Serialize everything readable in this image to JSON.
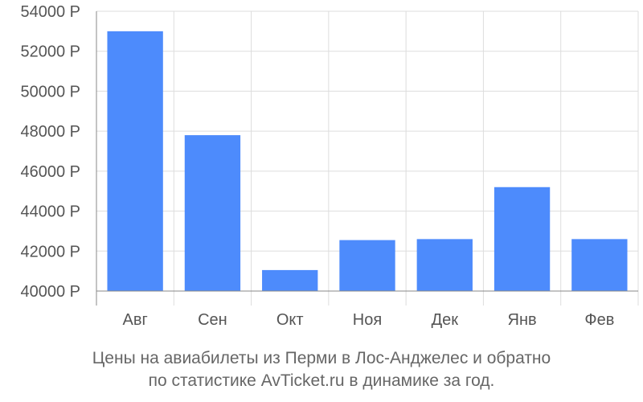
{
  "chart_data": {
    "type": "bar",
    "categories": [
      "Авг",
      "Сен",
      "Окт",
      "Ноя",
      "Дек",
      "Янв",
      "Фев"
    ],
    "values": [
      53000,
      47800,
      41050,
      42550,
      42600,
      45200,
      42600
    ],
    "ylim": [
      40000,
      54000
    ],
    "yticks": [
      40000,
      42000,
      44000,
      46000,
      48000,
      50000,
      52000,
      54000
    ],
    "ytick_suffix": " Р",
    "grid": true,
    "bar_color": "#4d8bfc"
  },
  "caption": {
    "line1": "Цены на авиабилеты из Перми в Лос-Анджелес и обратно",
    "line2": "по статистике AvTicket.ru в динамике за год."
  }
}
